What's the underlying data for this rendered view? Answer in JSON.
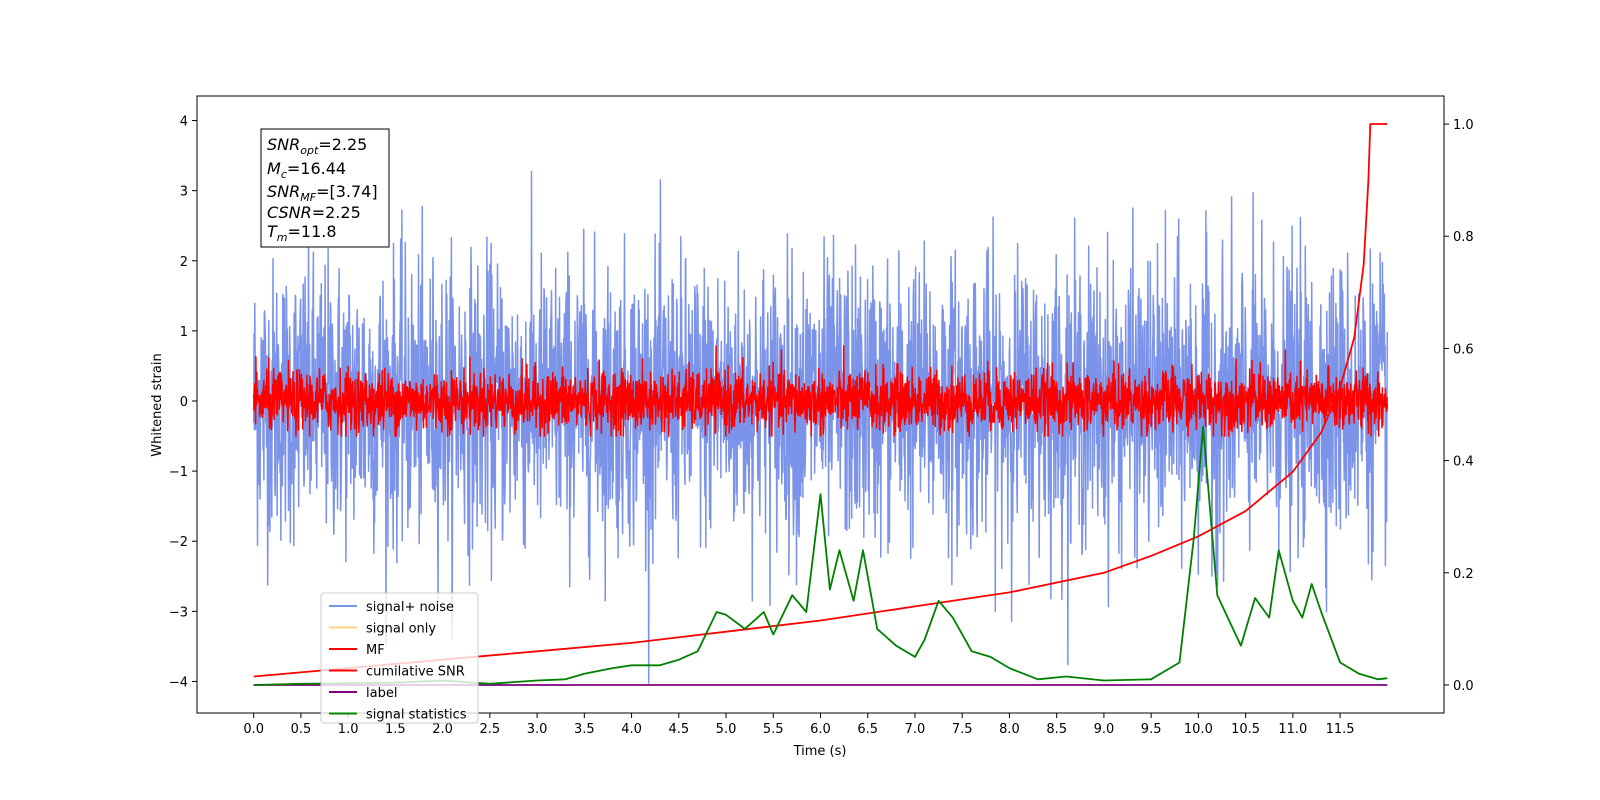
{
  "chart_data": {
    "type": "line",
    "xlabel": "Time (s)",
    "ylabel": "Whitened strain",
    "xlim": [
      -0.6,
      12.6
    ],
    "ylim": [
      -4.45,
      4.35
    ],
    "ylim_right": [
      -0.05,
      1.05
    ],
    "x_ticks": [
      "0.0",
      "0.5",
      "1.0",
      "1.5",
      "2.0",
      "2.5",
      "3.0",
      "3.5",
      "4.0",
      "4.5",
      "5.0",
      "5.5",
      "6.0",
      "6.5",
      "7.0",
      "7.5",
      "8.0",
      "8.5",
      "9.0",
      "9.5",
      "10.0",
      "10.5",
      "11.0",
      "11.5"
    ],
    "y_ticks_left": [
      "4",
      "3",
      "2",
      "1",
      "0",
      "−1",
      "−2",
      "−3",
      "−4"
    ],
    "y_ticks_right": [
      "1.0",
      "0.8",
      "0.6",
      "0.4",
      "0.2",
      "0.0"
    ],
    "grid": false,
    "legend_placement": "lower-left",
    "annotation": {
      "snr_opt": {
        "base": "SNR",
        "sub": "opt",
        "value": "=2.25"
      },
      "mc": {
        "base": "M",
        "sub": "c",
        "value": "=16.44"
      },
      "snr_mf": {
        "base": "SNR",
        "sub": "MF",
        "value": "=[3.74]"
      },
      "csnr": {
        "base": "CSNR",
        "value": "=2.25"
      },
      "tm": {
        "base": "T",
        "sub": "m",
        "value": "=11.8"
      }
    },
    "series": [
      {
        "name": "signal+ noise",
        "color": "#7b93e8",
        "axis": "left",
        "kind": "noise",
        "amplitude_std": 1.0,
        "max": 3.92,
        "min": -4.15,
        "x_range": [
          0.0,
          12.0
        ]
      },
      {
        "name": "signal only",
        "color": "#ffd27f",
        "axis": "left",
        "kind": "hidden"
      },
      {
        "name": "MF",
        "color": "#ff0000",
        "axis": "left",
        "kind": "noise",
        "amplitude_std": 0.22,
        "max": 0.95,
        "min": -0.5,
        "x_range": [
          0.0,
          12.0
        ]
      },
      {
        "name": "cumilative SNR",
        "color": "#ff0000",
        "axis": "right",
        "x": [
          0.0,
          1.0,
          2.0,
          3.0,
          4.0,
          5.0,
          6.0,
          7.0,
          8.0,
          9.0,
          9.5,
          10.0,
          10.5,
          11.0,
          11.3,
          11.5,
          11.65,
          11.75,
          11.8,
          11.82,
          12.0
        ],
        "y": [
          0.015,
          0.03,
          0.045,
          0.06,
          0.075,
          0.095,
          0.115,
          0.14,
          0.165,
          0.2,
          0.23,
          0.265,
          0.31,
          0.38,
          0.45,
          0.53,
          0.62,
          0.75,
          0.9,
          1.0,
          1.0
        ]
      },
      {
        "name": "label",
        "color": "#800080",
        "axis": "right",
        "x": [
          0.0,
          12.0
        ],
        "y": [
          0.0,
          0.0
        ]
      },
      {
        "name": "signal statistics",
        "color": "#008000",
        "axis": "right",
        "x": [
          0.0,
          0.5,
          1.0,
          1.5,
          2.0,
          2.5,
          3.0,
          3.3,
          3.5,
          3.8,
          4.0,
          4.3,
          4.5,
          4.7,
          4.9,
          5.0,
          5.2,
          5.4,
          5.5,
          5.7,
          5.85,
          6.0,
          6.1,
          6.2,
          6.35,
          6.45,
          6.6,
          6.8,
          7.0,
          7.1,
          7.25,
          7.4,
          7.6,
          7.8,
          8.0,
          8.3,
          8.6,
          9.0,
          9.5,
          9.8,
          9.95,
          10.05,
          10.2,
          10.45,
          10.6,
          10.75,
          10.85,
          11.0,
          11.1,
          11.2,
          11.3,
          11.5,
          11.7,
          11.9,
          12.0
        ],
        "y": [
          0.0,
          0.002,
          0.003,
          0.004,
          0.008,
          0.002,
          0.008,
          0.01,
          0.02,
          0.03,
          0.035,
          0.035,
          0.045,
          0.06,
          0.13,
          0.125,
          0.1,
          0.13,
          0.09,
          0.16,
          0.13,
          0.34,
          0.17,
          0.24,
          0.15,
          0.24,
          0.1,
          0.07,
          0.05,
          0.08,
          0.15,
          0.12,
          0.06,
          0.05,
          0.03,
          0.01,
          0.015,
          0.008,
          0.01,
          0.04,
          0.26,
          0.46,
          0.16,
          0.07,
          0.155,
          0.12,
          0.24,
          0.15,
          0.12,
          0.18,
          0.13,
          0.04,
          0.02,
          0.01,
          0.012
        ]
      }
    ]
  }
}
